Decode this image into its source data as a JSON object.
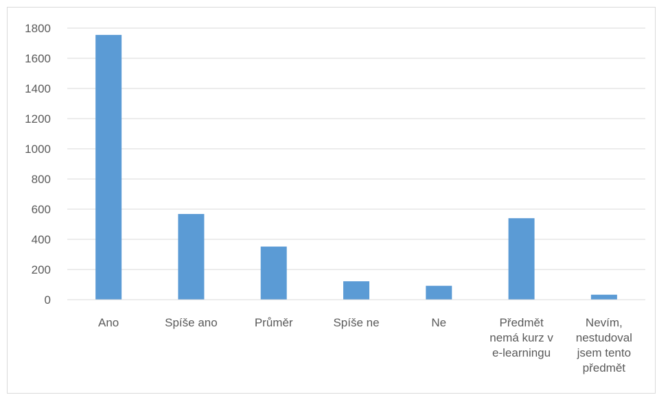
{
  "chart_data": {
    "type": "bar",
    "categories": [
      [
        "Ano"
      ],
      [
        "Spíše ano"
      ],
      [
        "Průměr"
      ],
      [
        "Spíše ne"
      ],
      [
        "Ne"
      ],
      [
        "Předmět",
        "nemá kurz v",
        "e-learningu"
      ],
      [
        "Nevím,",
        "nestudoval",
        "jsem tento",
        "předmět"
      ]
    ],
    "values": [
      1755,
      568,
      352,
      122,
      92,
      540,
      33
    ],
    "ylim": [
      0,
      1800
    ],
    "yticks": [
      0,
      200,
      400,
      600,
      800,
      1000,
      1200,
      1400,
      1600,
      1800
    ],
    "ytick_labels": [
      "0",
      "200",
      "400",
      "600",
      "800",
      "1000",
      "1200",
      "1400",
      "1600",
      "1800"
    ],
    "grid": true,
    "bar_color": "#5b9bd5",
    "grid_color": "#d9d9d9"
  }
}
